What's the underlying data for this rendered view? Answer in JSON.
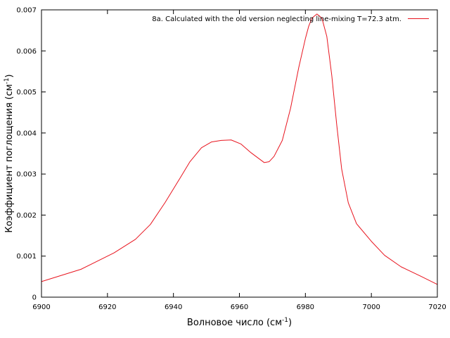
{
  "chart_data": {
    "type": "line",
    "xlabel_main": "Волновое число (см",
    "xlabel_sup": "-1",
    "xlabel_end": ")",
    "ylabel_main": "Коэффициент поглощения (см",
    "ylabel_sup": "-1",
    "ylabel_end": ")",
    "xlim": [
      6900,
      7020
    ],
    "ylim": [
      0,
      0.007
    ],
    "x_ticks": [
      "6900",
      "6920",
      "6940",
      "6960",
      "6980",
      "7000",
      "7020"
    ],
    "y_ticks": [
      "0",
      "0.001",
      "0.002",
      "0.003",
      "0.004",
      "0.005",
      "0.006",
      "0.007"
    ],
    "grid": false,
    "legend_position": "top-right",
    "series": [
      {
        "name": "8a. Calculated with the old version neglecting line-mixing T=72.3 atm.",
        "color": "#e8141e",
        "x": [
          6900,
          6912,
          6922,
          6928.5,
          6933,
          6937.5,
          6942,
          6945,
          6948.5,
          6951.5,
          6954.5,
          6957.5,
          6960.5,
          6963.5,
          6965.5,
          6967.5,
          6969,
          6970.5,
          6973,
          6975.5,
          6978,
          6980,
          6981,
          6982,
          6983.5,
          6985,
          6986.5,
          6988,
          6989.5,
          6991,
          6993,
          6995.5,
          7000,
          7004,
          7009,
          7015,
          7020
        ],
        "y": [
          0.00038,
          0.00068,
          0.00108,
          0.00141,
          0.00177,
          0.00231,
          0.0029,
          0.0033,
          0.00364,
          0.00378,
          0.00382,
          0.00383,
          0.00373,
          0.00352,
          0.0034,
          0.00328,
          0.0033,
          0.00343,
          0.00382,
          0.0046,
          0.0056,
          0.0063,
          0.0066,
          0.0068,
          0.0069,
          0.0068,
          0.00635,
          0.0054,
          0.0042,
          0.00312,
          0.0023,
          0.00179,
          0.00136,
          0.00102,
          0.00074,
          0.00051,
          0.00031
        ]
      }
    ]
  }
}
